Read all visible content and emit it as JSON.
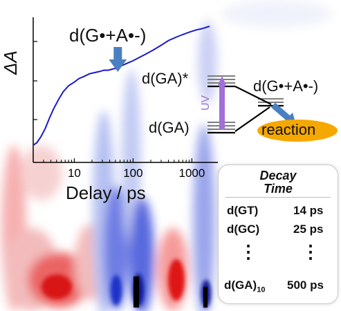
{
  "chart_data": {
    "type": "line",
    "xscale": "log",
    "xlim": [
      2,
      2000
    ],
    "xticks": [
      {
        "value": 10,
        "label": "10"
      },
      {
        "value": 100,
        "label": "100"
      },
      {
        "value": 1000,
        "label": "1000"
      }
    ],
    "xlabel": "Delay / ps",
    "ylabel": "ΔA",
    "series": [
      {
        "x": [
          2,
          2.3,
          2.7,
          3.2,
          3.8,
          4.5,
          5.5,
          6.5,
          8,
          10,
          12,
          15,
          18,
          22,
          27,
          32,
          38,
          45,
          55,
          65,
          80,
          100,
          130,
          170,
          220,
          300,
          400,
          550,
          700,
          900,
          1200,
          1500,
          2000
        ],
        "values": [
          0.0,
          0.02,
          0.07,
          0.14,
          0.23,
          0.31,
          0.39,
          0.45,
          0.5,
          0.53,
          0.56,
          0.58,
          0.6,
          0.61,
          0.62,
          0.63,
          0.63,
          0.64,
          0.65,
          0.67,
          0.69,
          0.71,
          0.74,
          0.77,
          0.8,
          0.84,
          0.88,
          0.91,
          0.93,
          0.95,
          0.97,
          0.98,
          1.0
        ]
      }
    ],
    "annotations": {
      "arrow_label": "d(G•+A•-)",
      "arrow_target_x": 55
    }
  },
  "background": {
    "red_bands_ps": [
      2.3,
      3,
      70,
      1000
    ],
    "blue_bands_ps": [
      5,
      30,
      110,
      1500
    ]
  },
  "diagram": {
    "upper_state": "d(GA)*",
    "lower_state": "d(GA)",
    "product_state": "d(G•+A•-)",
    "excitation_label": "UV",
    "reaction_label": "reaction",
    "colors": {
      "uv": "#a070d6",
      "reaction_fill": "#f5a800",
      "arrow": "#4a7fc1",
      "line": "#1a1ac8"
    }
  },
  "table": {
    "header_1": "Decay",
    "header_2": "Time",
    "rows": [
      {
        "name": "d(GT)",
        "time": "14 ps"
      },
      {
        "name": "d(GC)",
        "time": "25 ps"
      }
    ],
    "last_row": {
      "name": "d(GA)",
      "subscript": "10",
      "time": "500 ps"
    },
    "ellipsis": "⋮"
  }
}
